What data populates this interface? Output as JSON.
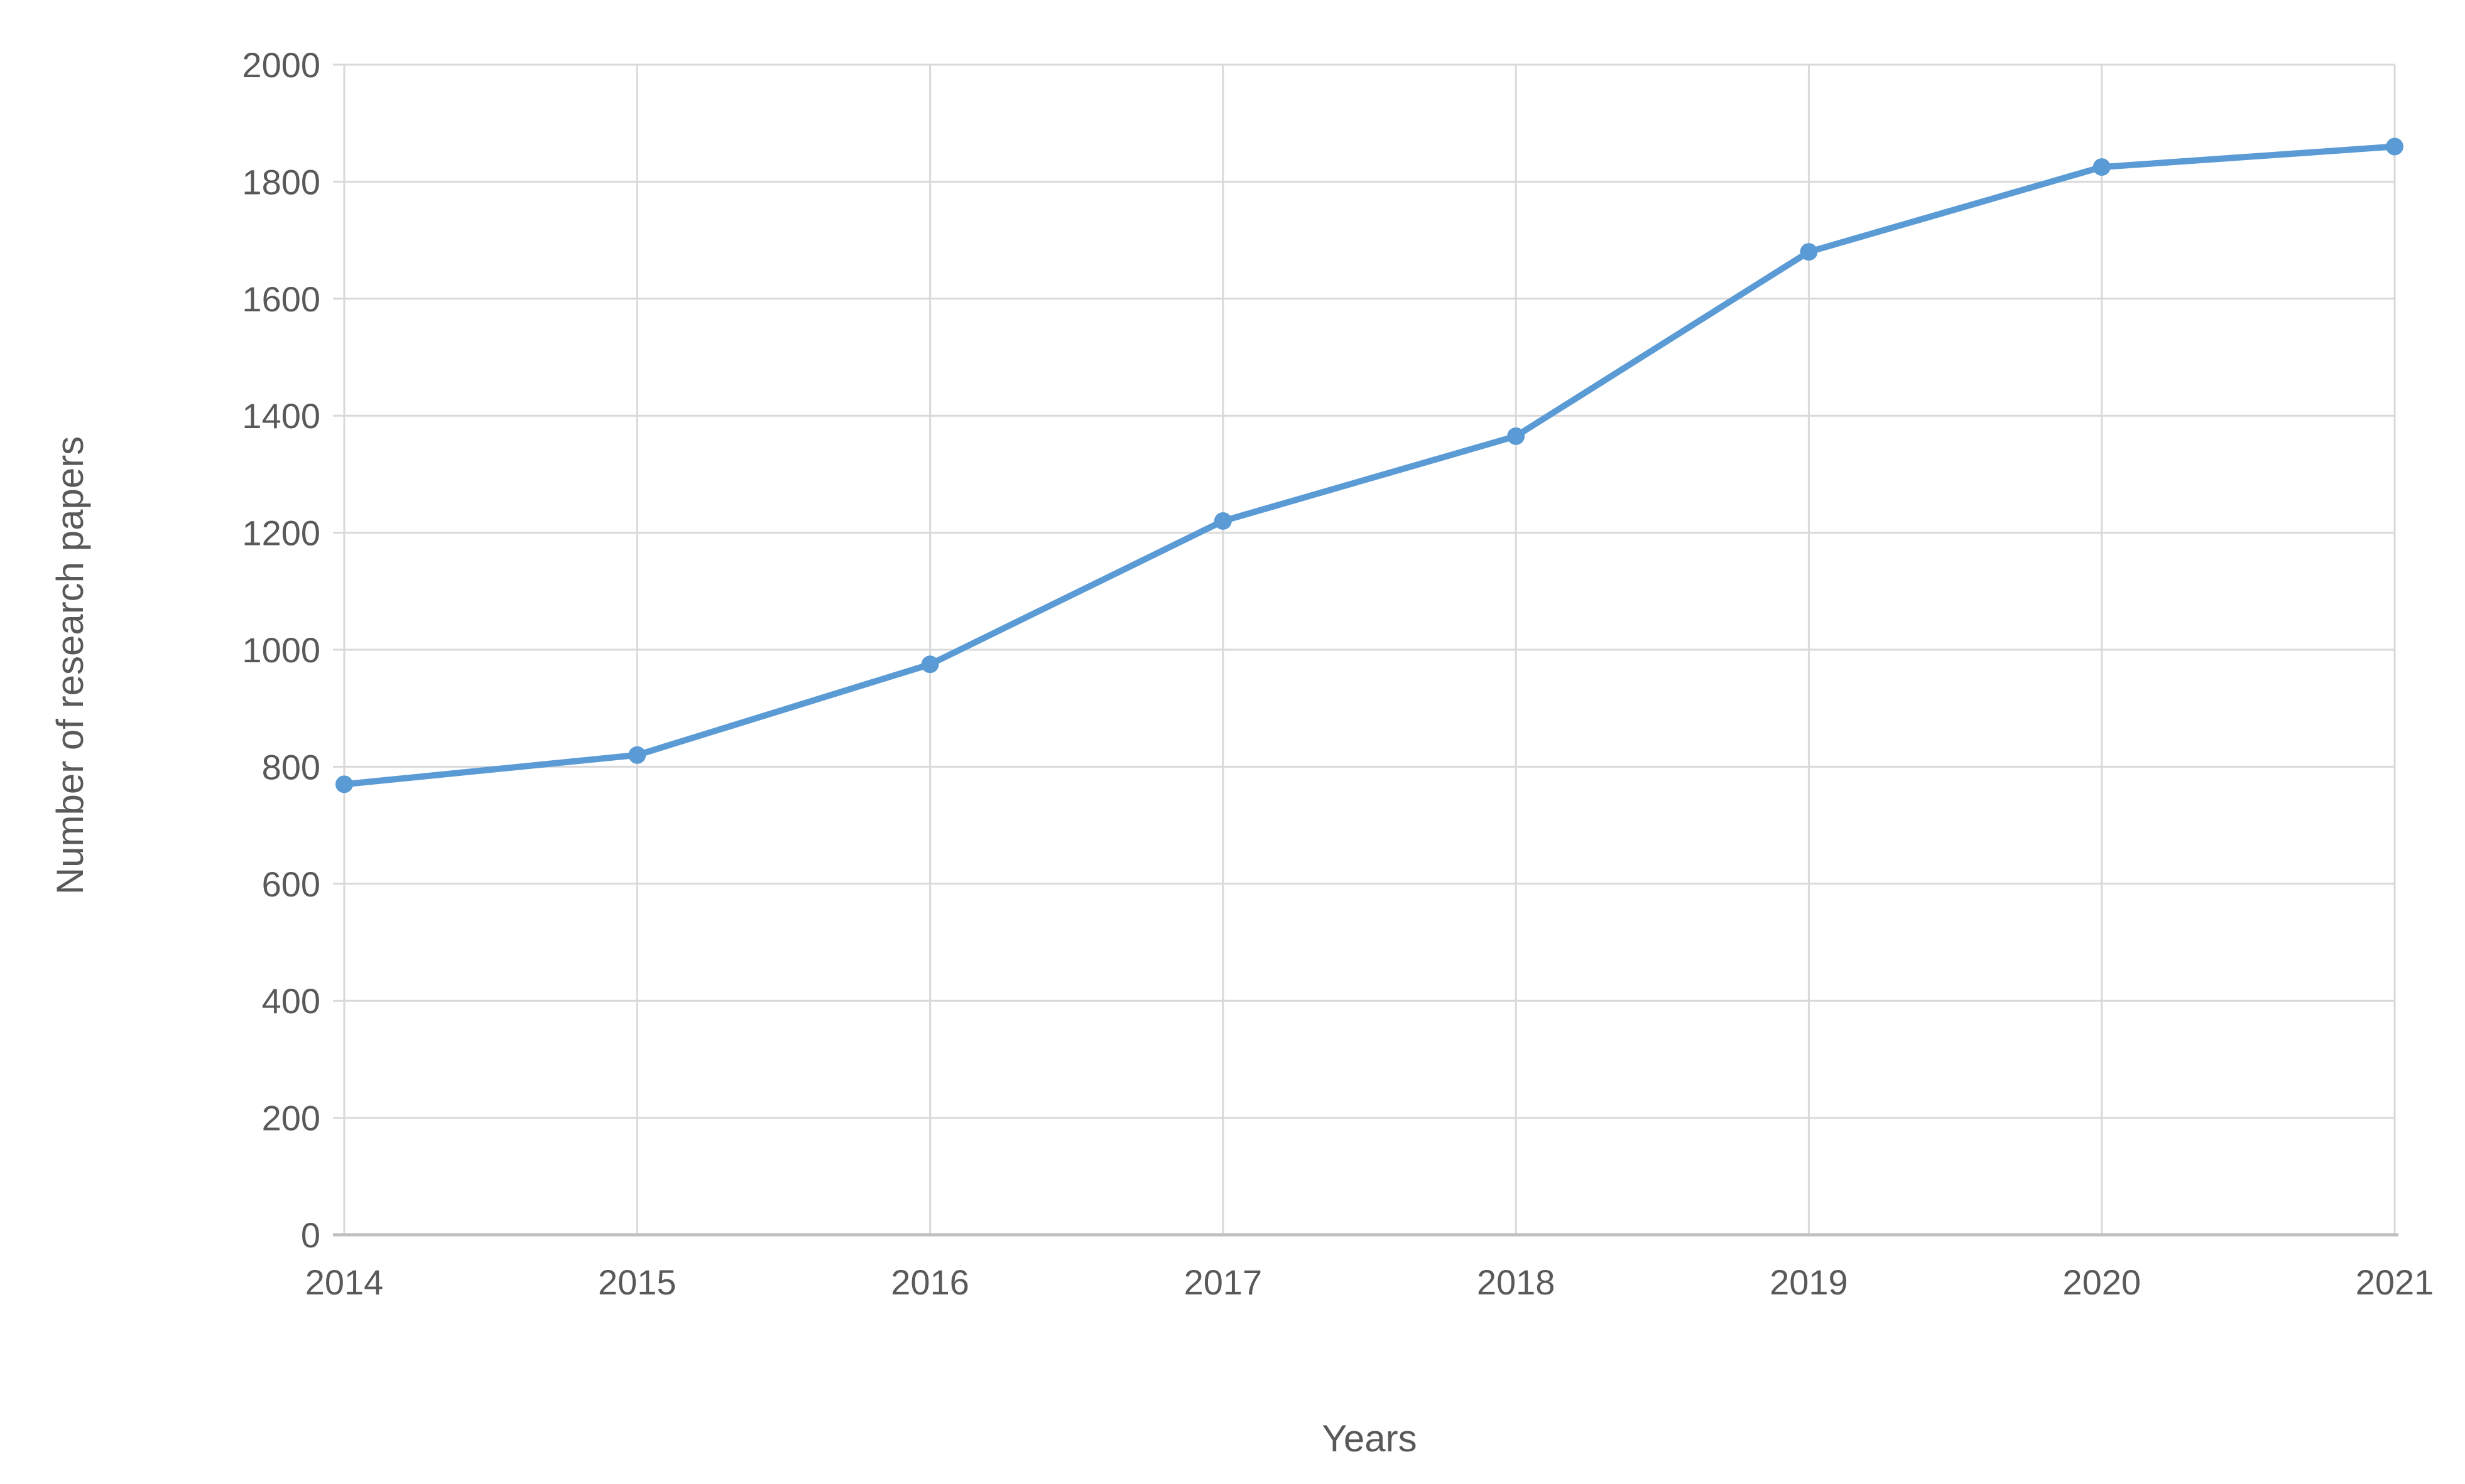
{
  "chart_data": {
    "type": "line",
    "title": "",
    "xlabel": "Years",
    "ylabel": "Number of research papers",
    "categories": [
      "2014",
      "2015",
      "2016",
      "2017",
      "2018",
      "2019",
      "2020",
      "2021"
    ],
    "series": [
      {
        "name": "Number of research papers",
        "values": [
          770,
          820,
          975,
          1220,
          1365,
          1680,
          1825,
          1860
        ]
      }
    ],
    "ylim": [
      0,
      2000
    ],
    "ytick_step": 200,
    "y_ticks": [
      "0",
      "200",
      "400",
      "600",
      "800",
      "1000",
      "1200",
      "1400",
      "1600",
      "1800",
      "2000"
    ],
    "grid": true,
    "legend_position": "none",
    "colors": {
      "line": "#5B9BD5",
      "marker": "#5B9BD5",
      "gridline": "#D9D9D9",
      "axis_line": "#BFBFBF",
      "label": "#595959",
      "background": "#FFFFFF"
    }
  }
}
